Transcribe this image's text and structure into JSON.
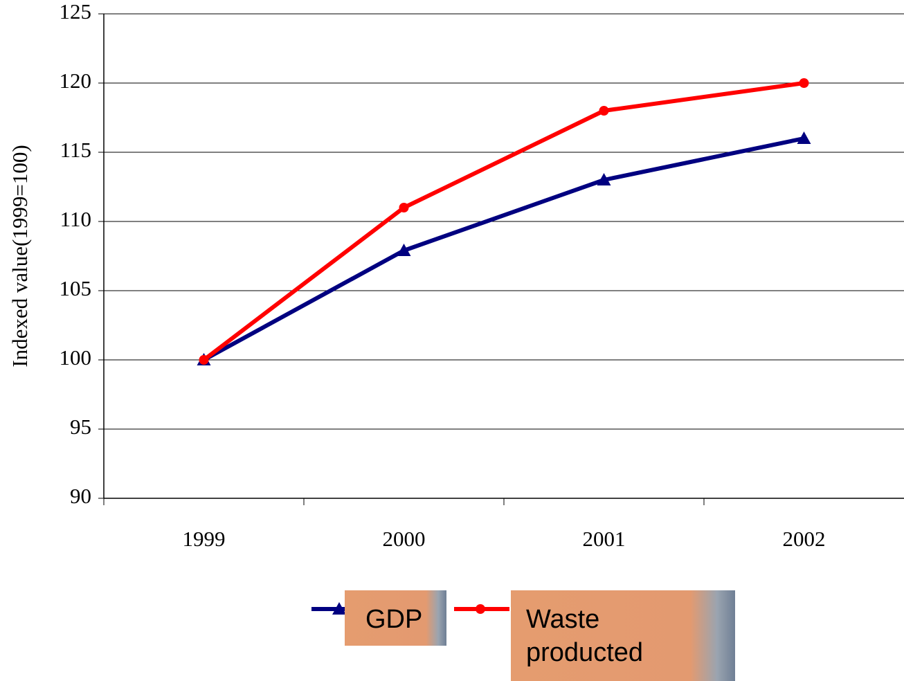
{
  "chart_data": {
    "type": "line",
    "y_label": "Indexed value(1999=100)",
    "categories": [
      "1999",
      "2000",
      "2001",
      "2002"
    ],
    "series": [
      {
        "name": "GDP",
        "color": "#000080",
        "marker": "triangle",
        "values": [
          100,
          107.9,
          113,
          116
        ]
      },
      {
        "name": "Waste producted",
        "color": "#ff0000",
        "marker": "circle",
        "values": [
          100,
          111,
          118,
          120
        ]
      }
    ],
    "ylim": [
      90,
      125
    ],
    "yticks": [
      90,
      95,
      100,
      105,
      110,
      115,
      120,
      125
    ],
    "grid": true
  }
}
